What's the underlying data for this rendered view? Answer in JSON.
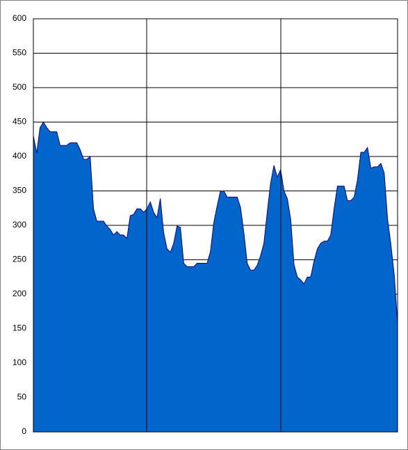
{
  "chart_data": {
    "type": "area",
    "categories": [
      null,
      null,
      null,
      null,
      null,
      null,
      null,
      null,
      null,
      null,
      null,
      null,
      null,
      null,
      null,
      null,
      null,
      null,
      null,
      null,
      null,
      null,
      null,
      null,
      null,
      null,
      null,
      null,
      null,
      null,
      null,
      null,
      null,
      null,
      null,
      null,
      null,
      null,
      null,
      null,
      null,
      null,
      null,
      null,
      null,
      null,
      null,
      null,
      null,
      null,
      null,
      null,
      null,
      null,
      null,
      null,
      null,
      null,
      null,
      null,
      null,
      null,
      null,
      null,
      null,
      null,
      null,
      null,
      null,
      null,
      null,
      null,
      null,
      null,
      null,
      null,
      null,
      null,
      null,
      null,
      null,
      null,
      null,
      null,
      null,
      null,
      null,
      null,
      null,
      null,
      null,
      null,
      null,
      null,
      null,
      null,
      null,
      null,
      null,
      null,
      null,
      null,
      null,
      null,
      null,
      null,
      null,
      null,
      null,
      null
    ],
    "values": [
      430,
      405,
      442,
      450,
      442,
      436,
      436,
      436,
      416,
      416,
      416,
      420,
      420,
      420,
      410,
      396,
      396,
      400,
      324,
      306,
      306,
      306,
      299,
      294,
      286,
      291,
      286,
      286,
      281,
      314,
      316,
      324,
      324,
      319,
      324,
      334,
      319,
      311,
      339,
      289,
      266,
      261,
      274,
      299,
      297,
      245,
      240,
      240,
      240,
      245,
      245,
      245,
      245,
      262,
      304,
      328,
      350,
      350,
      341,
      341,
      341,
      341,
      326,
      289,
      245,
      235,
      235,
      242,
      256,
      274,
      319,
      361,
      387,
      370,
      381,
      350,
      339,
      309,
      243,
      225,
      221,
      215,
      225,
      225,
      248,
      266,
      274,
      277,
      277,
      286,
      324,
      357,
      357,
      357,
      336,
      336,
      341,
      366,
      406,
      406,
      413,
      383,
      385,
      385,
      390,
      376,
      309,
      272,
      228,
      158
    ],
    "color": "#0066cc",
    "ylim": [
      0,
      600
    ],
    "yticks": [
      0,
      50,
      100,
      150,
      200,
      250,
      300,
      350,
      400,
      450,
      500,
      550,
      600
    ],
    "grid": true
  }
}
